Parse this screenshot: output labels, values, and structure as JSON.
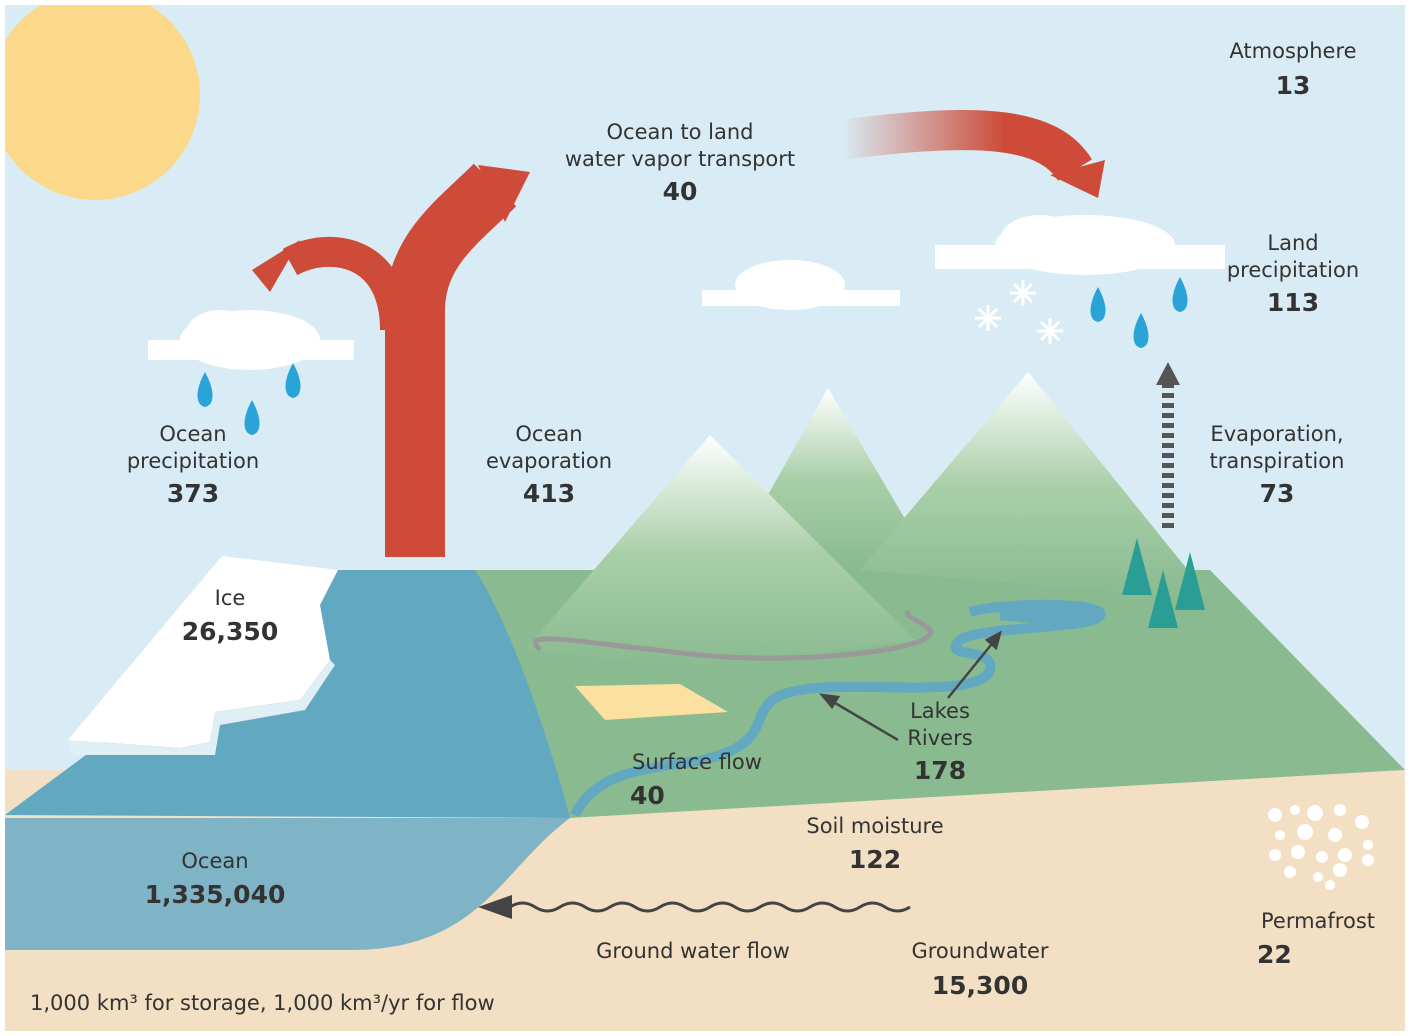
{
  "nodes": [
    {
      "label": [
        "Atmosphere"
      ],
      "value": "13"
    },
    {
      "label": [
        "Ocean to land",
        "water vapor transport"
      ],
      "value": "40"
    },
    {
      "label": [
        "Land",
        "precipitation"
      ],
      "value": "113"
    },
    {
      "label": [
        "Ocean",
        "precipitation"
      ],
      "value": "373"
    },
    {
      "label": [
        "Ocean",
        "evaporation"
      ],
      "value": "413"
    },
    {
      "label": [
        "Evaporation,",
        "transpiration"
      ],
      "value": "73"
    },
    {
      "label": [
        "Ice"
      ],
      "value": "26,350"
    },
    {
      "label": [
        "Lakes",
        "Rivers"
      ],
      "value": "178"
    },
    {
      "label": [
        "Surface flow"
      ],
      "value": "40"
    },
    {
      "label": [
        "Soil moisture"
      ],
      "value": "122"
    },
    {
      "label": [
        "Ocean"
      ],
      "value": "1,335,040"
    },
    {
      "label": [
        "Permafrost"
      ],
      "value": "22"
    },
    {
      "label": [
        "Ground water flow"
      ]
    },
    {
      "label": [
        "Groundwater"
      ],
      "value": "15,300"
    }
  ],
  "footnote": "1,000 km³ for storage, 1,000 km³/yr for flow"
}
